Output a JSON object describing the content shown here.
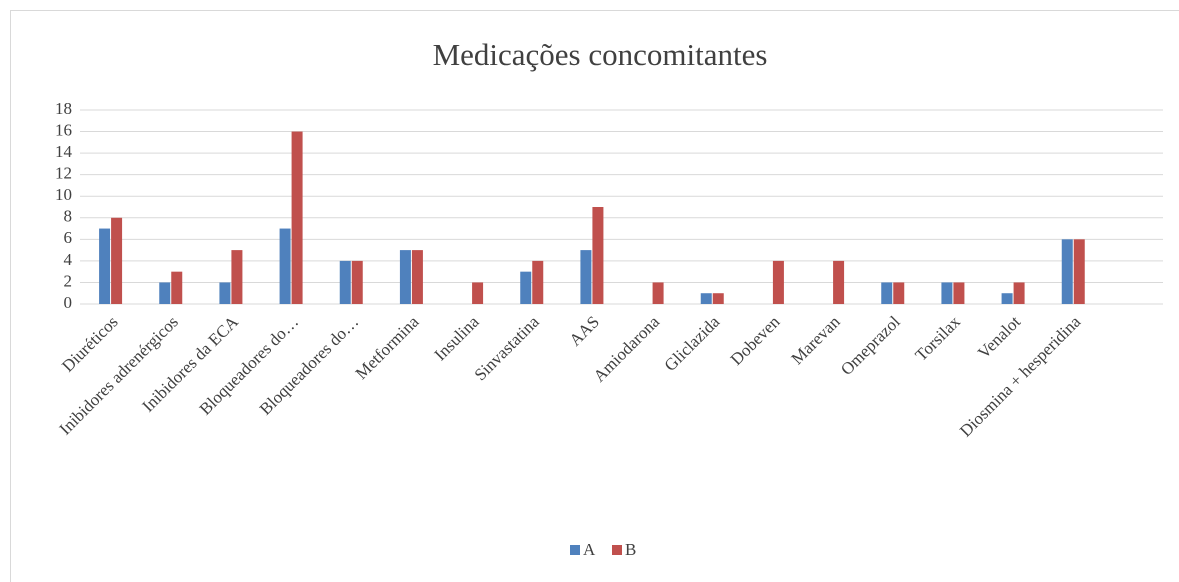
{
  "chart_data": {
    "type": "bar",
    "title": "Medicações concomitantes",
    "categories": [
      "Diuréticos",
      "Inibidores adrenérgicos",
      "Inibidores da ECA",
      "Bloqueadores do…",
      "Bloqueadores do…",
      "Metformina",
      "Insulina",
      "Sinvastatina",
      "AAS",
      "Amiodarona",
      "Gliclazida",
      "Dobeven",
      "Marevan",
      "Omeprazol",
      "Torsilax",
      "Venalot",
      "Diosmina + hesperidina",
      null
    ],
    "series": [
      {
        "name": "A",
        "color": "#4f81bd",
        "values": [
          7,
          2,
          2,
          7,
          4,
          5,
          0,
          3,
          5,
          0,
          1,
          0,
          0,
          2,
          2,
          1,
          6,
          null
        ]
      },
      {
        "name": "B",
        "color": "#c0504d",
        "values": [
          8,
          3,
          5,
          16,
          4,
          5,
          2,
          4,
          9,
          2,
          1,
          4,
          4,
          2,
          2,
          2,
          6,
          null
        ]
      }
    ],
    "ylim": [
      0,
      18
    ],
    "yticks": [
      0,
      2,
      4,
      6,
      8,
      10,
      12,
      14,
      16,
      18
    ],
    "grid": true,
    "legend": "bottom"
  }
}
